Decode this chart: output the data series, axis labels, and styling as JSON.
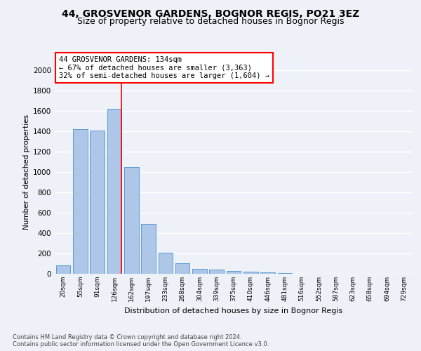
{
  "title1": "44, GROSVENOR GARDENS, BOGNOR REGIS, PO21 3EZ",
  "title2": "Size of property relative to detached houses in Bognor Regis",
  "xlabel": "Distribution of detached houses by size in Bognor Regis",
  "ylabel": "Number of detached properties",
  "categories": [
    "20sqm",
    "55sqm",
    "91sqm",
    "126sqm",
    "162sqm",
    "197sqm",
    "233sqm",
    "268sqm",
    "304sqm",
    "339sqm",
    "375sqm",
    "410sqm",
    "446sqm",
    "481sqm",
    "516sqm",
    "552sqm",
    "587sqm",
    "623sqm",
    "658sqm",
    "694sqm",
    "729sqm"
  ],
  "values": [
    80,
    1420,
    1410,
    1620,
    1050,
    490,
    205,
    105,
    50,
    40,
    25,
    20,
    15,
    10,
    0,
    0,
    0,
    0,
    0,
    0,
    0
  ],
  "bar_color": "#aec6e8",
  "bar_edge_color": "#5b9bd5",
  "annotation_text": "44 GROSVENOR GARDENS: 134sqm\n← 67% of detached houses are smaller (3,363)\n32% of semi-detached houses are larger (1,604) →",
  "annotation_box_color": "white",
  "annotation_border_color": "red",
  "footer": "Contains HM Land Registry data © Crown copyright and database right 2024.\nContains public sector information licensed under the Open Government Licence v3.0.",
  "ylim": [
    0,
    2000
  ],
  "yticks": [
    0,
    200,
    400,
    600,
    800,
    1000,
    1200,
    1400,
    1600,
    1800,
    2000
  ],
  "bg_color": "#eef2f8",
  "grid_color": "white",
  "title1_fontsize": 10,
  "title2_fontsize": 9
}
